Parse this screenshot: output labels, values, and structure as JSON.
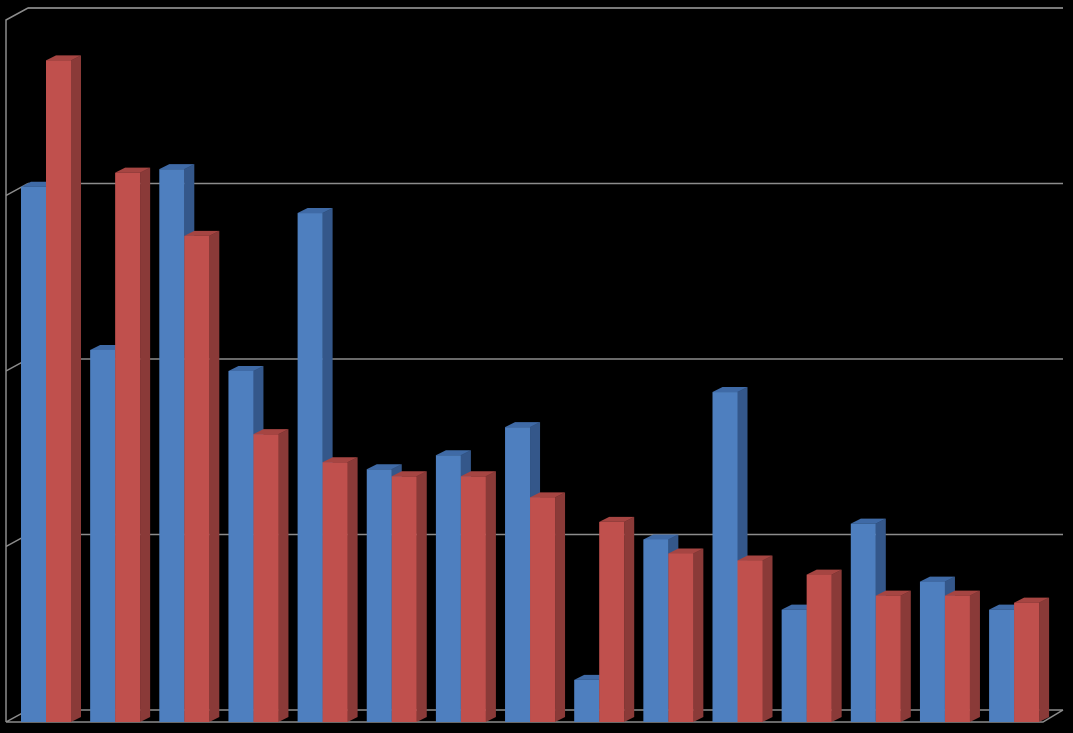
{
  "chart_data": {
    "type": "bar",
    "style": "3d-clustered-column",
    "categories": [
      "",
      "",
      "",
      "",
      "",
      "",
      "",
      "",
      "",
      "",
      "",
      "",
      "",
      "",
      ""
    ],
    "series": [
      {
        "values": [
          3.05,
          2.12,
          3.15,
          2.0,
          2.9,
          1.44,
          1.52,
          1.68,
          0.24,
          1.04,
          1.88,
          0.64,
          1.13,
          0.8,
          0.64
        ]
      },
      {
        "values": [
          3.77,
          3.13,
          2.77,
          1.64,
          1.48,
          1.4,
          1.4,
          1.28,
          1.14,
          0.96,
          0.92,
          0.84,
          0.72,
          0.72,
          0.68
        ]
      }
    ],
    "ylim": [
      0,
      4
    ],
    "grid": true,
    "legend": "none"
  },
  "colors": {
    "background": "#000000",
    "series_front": [
      "#4e7fbf",
      "#c0504d"
    ],
    "series_side": [
      "#34578a",
      "#8a3a38"
    ],
    "series_top": [
      "#3f6aa6",
      "#a64542"
    ],
    "gridline": "#8c8c8c"
  }
}
